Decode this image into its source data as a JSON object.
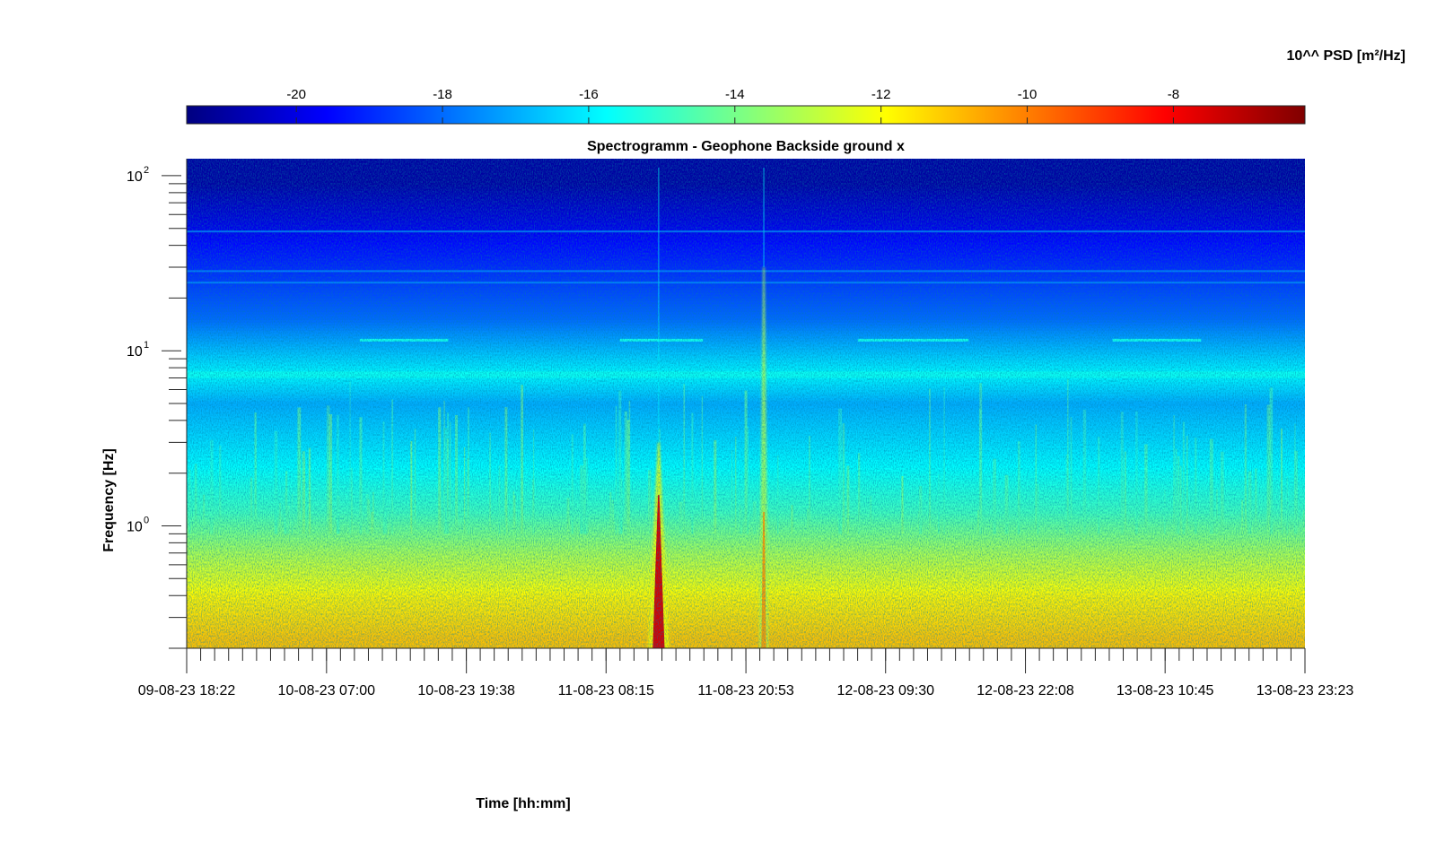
{
  "chart_data": {
    "type": "heatmap",
    "title": "Spectrogramm - Geophone Backside ground x",
    "xlabel": "Time [hh:mm]",
    "ylabel": "Frequency [Hz]",
    "y_scale": "log",
    "ylim": [
      0.2,
      125
    ],
    "y_ticks": [
      {
        "value": 1,
        "label": "10",
        "exp": "0"
      },
      {
        "value": 10,
        "label": "10",
        "exp": "1"
      },
      {
        "value": 100,
        "label": "10",
        "exp": "2"
      }
    ],
    "x_ticks": [
      "09-08-23 18:22",
      "10-08-23 07:00",
      "10-08-23 19:38",
      "11-08-23 08:15",
      "11-08-23 20:53",
      "12-08-23 09:30",
      "12-08-23 22:08",
      "13-08-23 10:45",
      "13-08-23 23:23"
    ],
    "xlim": [
      "09-08-23 18:22",
      "13-08-23 23:23"
    ],
    "colorbar": {
      "label": "10^^ PSD [m²/Hz]",
      "range": [
        -21.5,
        -6.2
      ],
      "ticks": [
        -20,
        -18,
        -16,
        -14,
        -12,
        -10,
        -8
      ],
      "colormap": "jet",
      "location": "top"
    },
    "features": {
      "background_by_frequency": [
        {
          "freq_hz": 0.22,
          "log10_psd": -11.0
        },
        {
          "freq_hz": 0.4,
          "log10_psd": -11.8
        },
        {
          "freq_hz": 0.7,
          "log10_psd": -13.2
        },
        {
          "freq_hz": 1.2,
          "log10_psd": -14.8
        },
        {
          "freq_hz": 2.5,
          "log10_psd": -16.0
        },
        {
          "freq_hz": 5,
          "log10_psd": -17.0
        },
        {
          "freq_hz": 7.3,
          "log10_psd": -15.8
        },
        {
          "freq_hz": 15,
          "log10_psd": -18.0
        },
        {
          "freq_hz": 40,
          "log10_psd": -19.5
        },
        {
          "freq_hz": 90,
          "log10_psd": -21.0
        }
      ],
      "persistent_lines_hz": [
        7.3,
        28.5,
        24.5,
        48
      ],
      "events": [
        {
          "time": "11-08-23 13:00",
          "max_freq_hz": 3.0,
          "peak_log10_psd": -7.5
        },
        {
          "time": "11-08-23 22:30",
          "max_freq_hz": 30,
          "peak_log10_psd": -10.5
        }
      ],
      "intermittent_line_11_5hz": [
        [
          "10-08-23 10:00",
          "10-08-23 18:00"
        ],
        [
          "11-08-23 09:30",
          "11-08-23 17:00"
        ],
        [
          "12-08-23 07:00",
          "12-08-23 17:00"
        ],
        [
          "13-08-23 06:00",
          "13-08-23 14:00"
        ]
      ]
    }
  }
}
